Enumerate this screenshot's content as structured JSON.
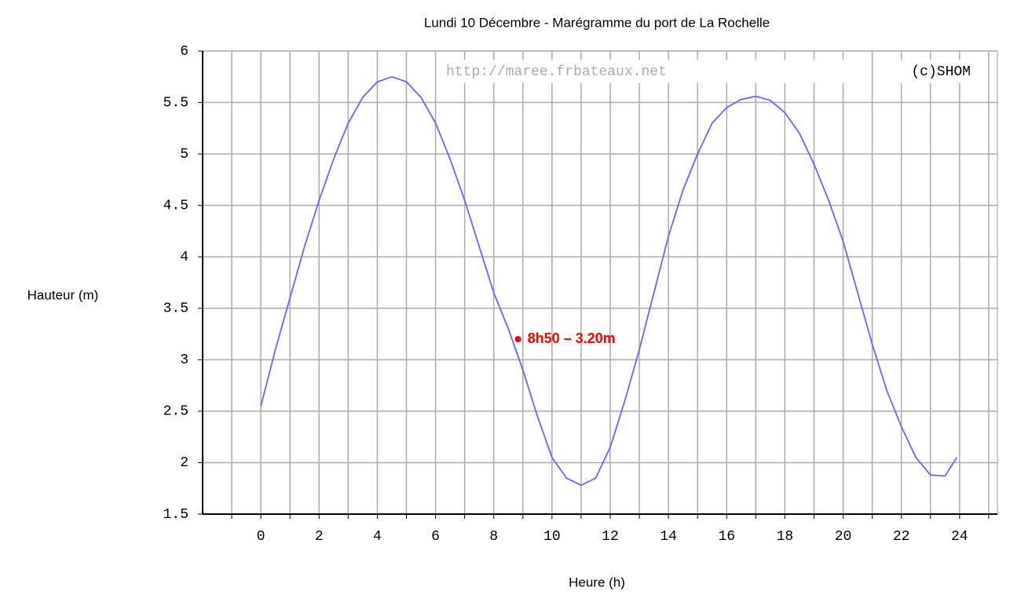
{
  "chart_data": {
    "type": "line",
    "title": "Lundi 10 Décembre - Marégramme du port de La Rochelle",
    "y_label": "Hauteur (m)",
    "x_label": "Heure (h)",
    "watermark": "http://maree.frbateaux.net",
    "credit": "(c)SHOM",
    "color": "#6666ff",
    "x": [
      0,
      0.5,
      1,
      1.5,
      2,
      2.5,
      3,
      3.5,
      4,
      4.5,
      5,
      5.5,
      6,
      6.5,
      7,
      7.5,
      8,
      8.5,
      9,
      9.5,
      10,
      10.5,
      11,
      11.5,
      12,
      12.5,
      13,
      13.5,
      14,
      14.5,
      15,
      15.5,
      16,
      16.5,
      17,
      17.5,
      18,
      18.5,
      19,
      19.5,
      20,
      20.5,
      21,
      21.5,
      22,
      22.5,
      23,
      23.5,
      23.9
    ],
    "values": [
      2.55,
      3.1,
      3.6,
      4.1,
      4.55,
      4.95,
      5.3,
      5.55,
      5.7,
      5.75,
      5.7,
      5.55,
      5.3,
      4.95,
      4.55,
      4.1,
      3.65,
      3.3,
      2.9,
      2.45,
      2.05,
      1.85,
      1.78,
      1.85,
      2.15,
      2.6,
      3.1,
      3.65,
      4.2,
      4.65,
      5.0,
      5.3,
      5.45,
      5.53,
      5.56,
      5.52,
      5.4,
      5.2,
      4.9,
      4.55,
      4.15,
      3.65,
      3.15,
      2.7,
      2.35,
      2.05,
      1.88,
      1.87,
      2.05
    ],
    "marker": {
      "x": 8.833,
      "y": 3.2,
      "label": "8h50 – 3.20m",
      "color": "#ff0000"
    },
    "xlim": [
      -2,
      25.3
    ],
    "ylim": [
      1.5,
      6
    ],
    "xticks": [
      0,
      2,
      4,
      6,
      8,
      10,
      12,
      14,
      16,
      18,
      20,
      22,
      24
    ],
    "xminorticks": [
      -1,
      1,
      3,
      5,
      7,
      9,
      11,
      13,
      15,
      17,
      19,
      21,
      23,
      25
    ],
    "yticks": [
      1.5,
      2,
      2.5,
      3,
      3.5,
      4,
      4.5,
      5,
      5.5,
      6
    ],
    "grid": true
  }
}
